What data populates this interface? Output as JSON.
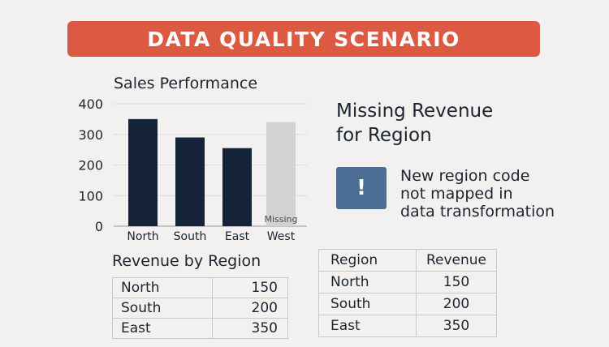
{
  "banner": {
    "title": "DATA QUALITY SCENARIO"
  },
  "chart_data": {
    "type": "bar",
    "title": "Sales Performance",
    "categories": [
      "North",
      "South",
      "East",
      "West"
    ],
    "values": [
      350,
      290,
      255,
      340
    ],
    "ylim": [
      0,
      400
    ],
    "yticks": [
      0,
      100,
      200,
      300,
      400
    ],
    "missing_category": "West",
    "missing_label": "Missing",
    "colors": {
      "bar": "#15233a",
      "missing": "#d2d2d2",
      "grid": "#dddcd9"
    },
    "grid": true
  },
  "callout": {
    "headline_line1": "Missing Revenue",
    "headline_line2": "for Region",
    "alert_icon": "!",
    "alert_line1": "New region code",
    "alert_line2": "not mapped in",
    "alert_line3": "data transformation",
    "alert_color": "#4c6d96"
  },
  "revenue_table": {
    "title": "Revenue by Region",
    "rows": [
      {
        "region": "North",
        "revenue": "150"
      },
      {
        "region": "South",
        "revenue": "200"
      },
      {
        "region": "East",
        "revenue": "350"
      }
    ]
  },
  "source_table": {
    "headers": [
      "Region",
      "Revenue"
    ],
    "rows": [
      {
        "region": "North",
        "revenue": "150"
      },
      {
        "region": "South",
        "revenue": "200"
      },
      {
        "region": "East",
        "revenue": "350"
      }
    ]
  }
}
